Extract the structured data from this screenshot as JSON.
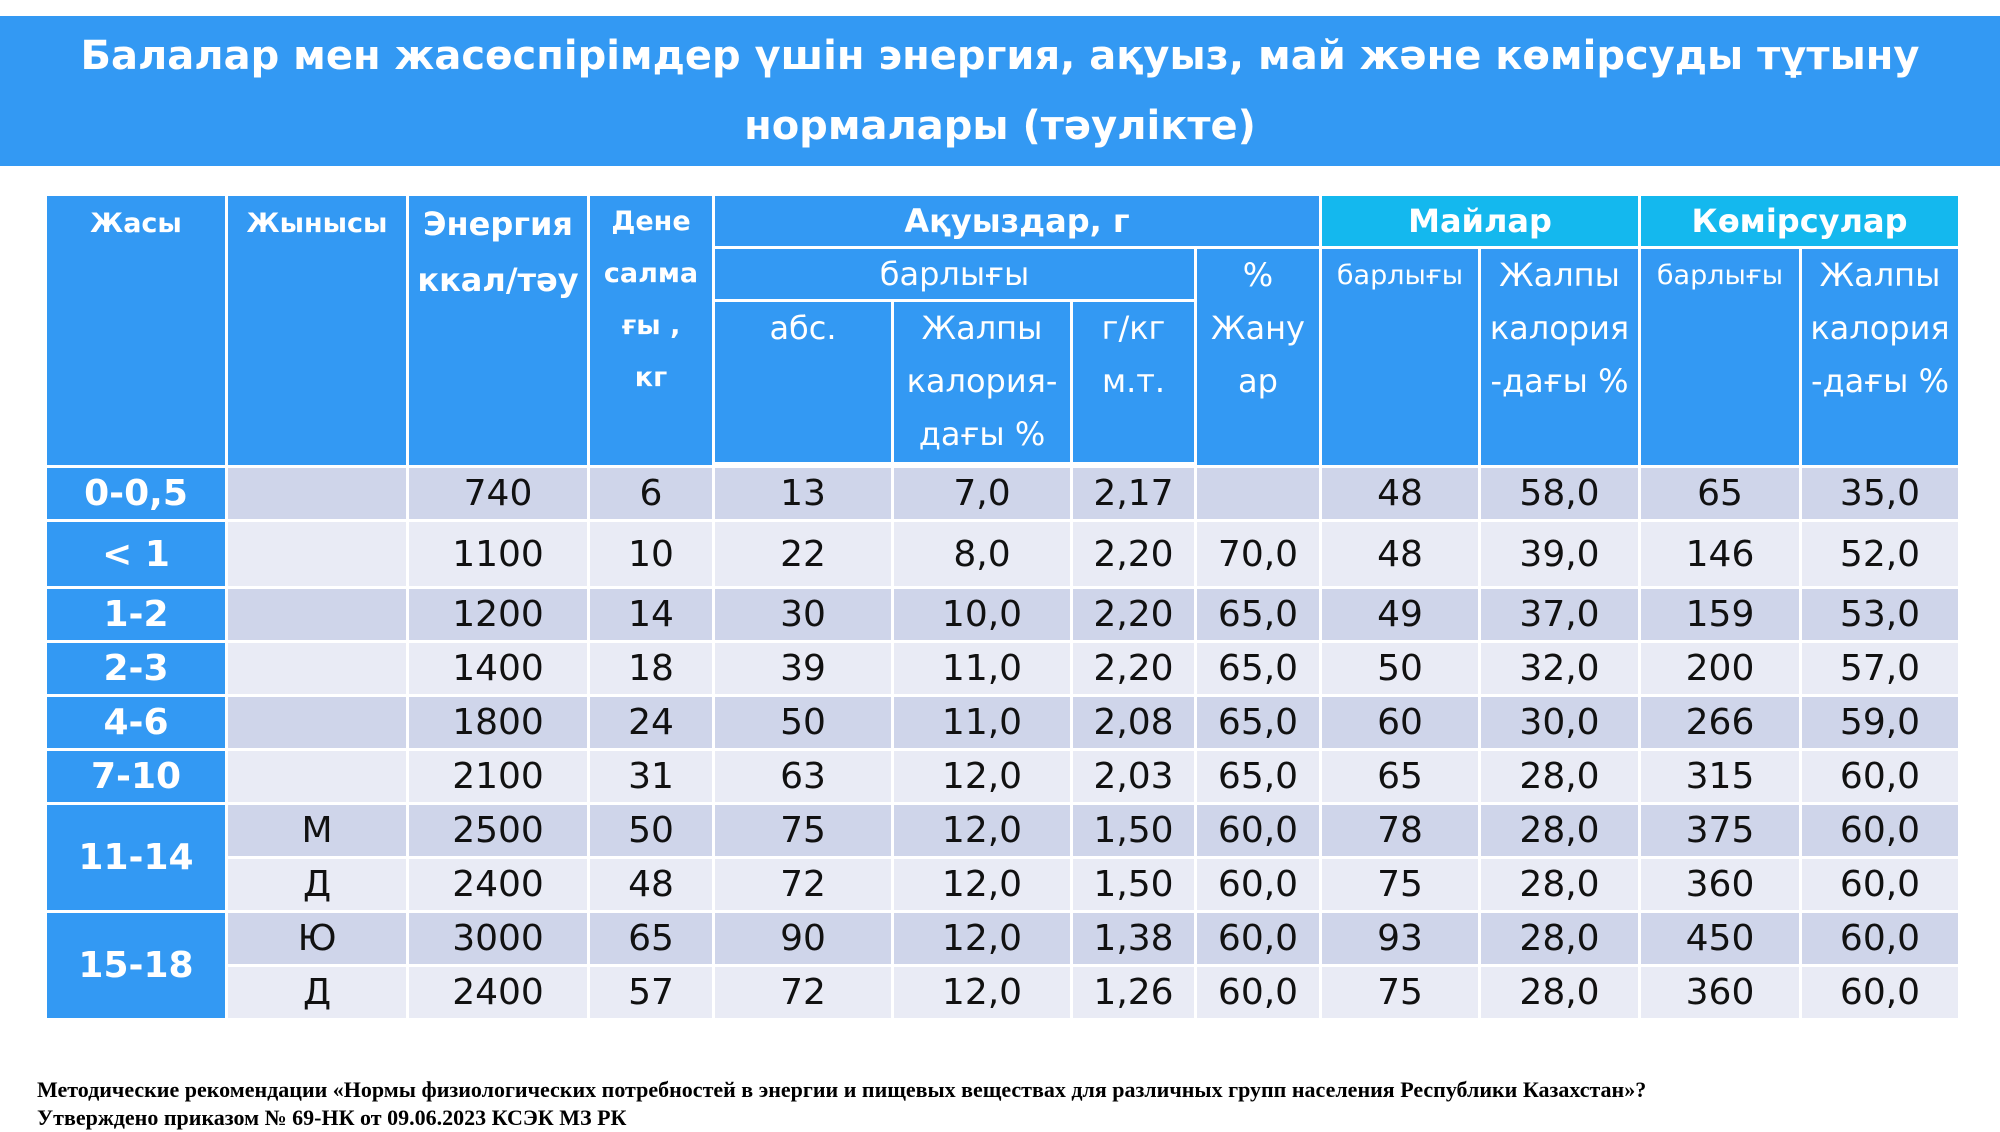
{
  "title": {
    "line1": "Балалар мен жасөспірімдер үшін энергия, ақуыз, май және көмірсуды тұтыну",
    "line2": "нормалары (тәулікте)"
  },
  "headers": {
    "age": "Жасы",
    "sex": "Жынысы",
    "energy": [
      "Энергия",
      "ккал/тәу"
    ],
    "weight": [
      "Дене",
      "салма",
      "ғы ,",
      "кг"
    ],
    "proteins": "Ақуыздар, г",
    "protein_total": "барлығы",
    "protein_abs": "абс.",
    "protein_cal": [
      "Жалпы",
      "калория-",
      "дағы %"
    ],
    "protein_gkg": [
      "г/кг",
      "м.т."
    ],
    "protein_animal": [
      "%",
      "Жану",
      "ар"
    ],
    "fats": "Майлар",
    "fats_total": "барлығы",
    "fats_cal": [
      "Жалпы",
      "калория",
      "-дағы %"
    ],
    "carbs": "Көмірсулар",
    "carbs_total": "барлығы",
    "carbs_cal": [
      "Жалпы",
      "калория",
      "-дағы %"
    ]
  },
  "rows": [
    {
      "age": "0-0,5",
      "sex": "",
      "v": [
        "740",
        "6",
        "13",
        "7,0",
        "2,17",
        "",
        "48",
        "58,0",
        "65",
        "35,0"
      ]
    },
    {
      "age": "< 1",
      "sex": "",
      "v": [
        "1100",
        "10",
        "22",
        "8,0",
        "2,20",
        "70,0",
        "48",
        "39,0",
        "146",
        "52,0"
      ]
    },
    {
      "age": "1-2",
      "sex": "",
      "v": [
        "1200",
        "14",
        "30",
        "10,0",
        "2,20",
        "65,0",
        "49",
        "37,0",
        "159",
        "53,0"
      ]
    },
    {
      "age": "2-3",
      "sex": "",
      "v": [
        "1400",
        "18",
        "39",
        "11,0",
        "2,20",
        "65,0",
        "50",
        "32,0",
        "200",
        "57,0"
      ]
    },
    {
      "age": "4-6",
      "sex": "",
      "v": [
        "1800",
        "24",
        "50",
        "11,0",
        "2,08",
        "65,0",
        "60",
        "30,0",
        "266",
        "59,0"
      ]
    },
    {
      "age": "7-10",
      "sex": "",
      "v": [
        "2100",
        "31",
        "63",
        "12,0",
        "2,03",
        "65,0",
        "65",
        "28,0",
        "315",
        "60,0"
      ]
    },
    {
      "age": "11-14",
      "sex": "М",
      "v": [
        "2500",
        "50",
        "75",
        "12,0",
        "1,50",
        "60,0",
        "78",
        "28,0",
        "375",
        "60,0"
      ]
    },
    {
      "age": "",
      "sex": "Д",
      "v": [
        "2400",
        "48",
        "72",
        "12,0",
        "1,50",
        "60,0",
        "75",
        "28,0",
        "360",
        "60,0"
      ]
    },
    {
      "age": "15-18",
      "sex": "Ю",
      "v": [
        "3000",
        "65",
        "90",
        "12,0",
        "1,38",
        "60,0",
        "93",
        "28,0",
        "450",
        "60,0"
      ]
    },
    {
      "age": "",
      "sex": "Д",
      "v": [
        "2400",
        "57",
        "72",
        "12,0",
        "1,26",
        "60,0",
        "75",
        "28,0",
        "360",
        "60,0"
      ]
    }
  ],
  "footer": {
    "line1": "Методические рекомендации «Нормы физиологических  потребностей в энергии и пищевых веществах для различных групп населения Республики Казахстан»?",
    "line2": "Утверждено приказом № 69-НК  от 09.06.2023 КСЭК МЗ РК"
  }
}
